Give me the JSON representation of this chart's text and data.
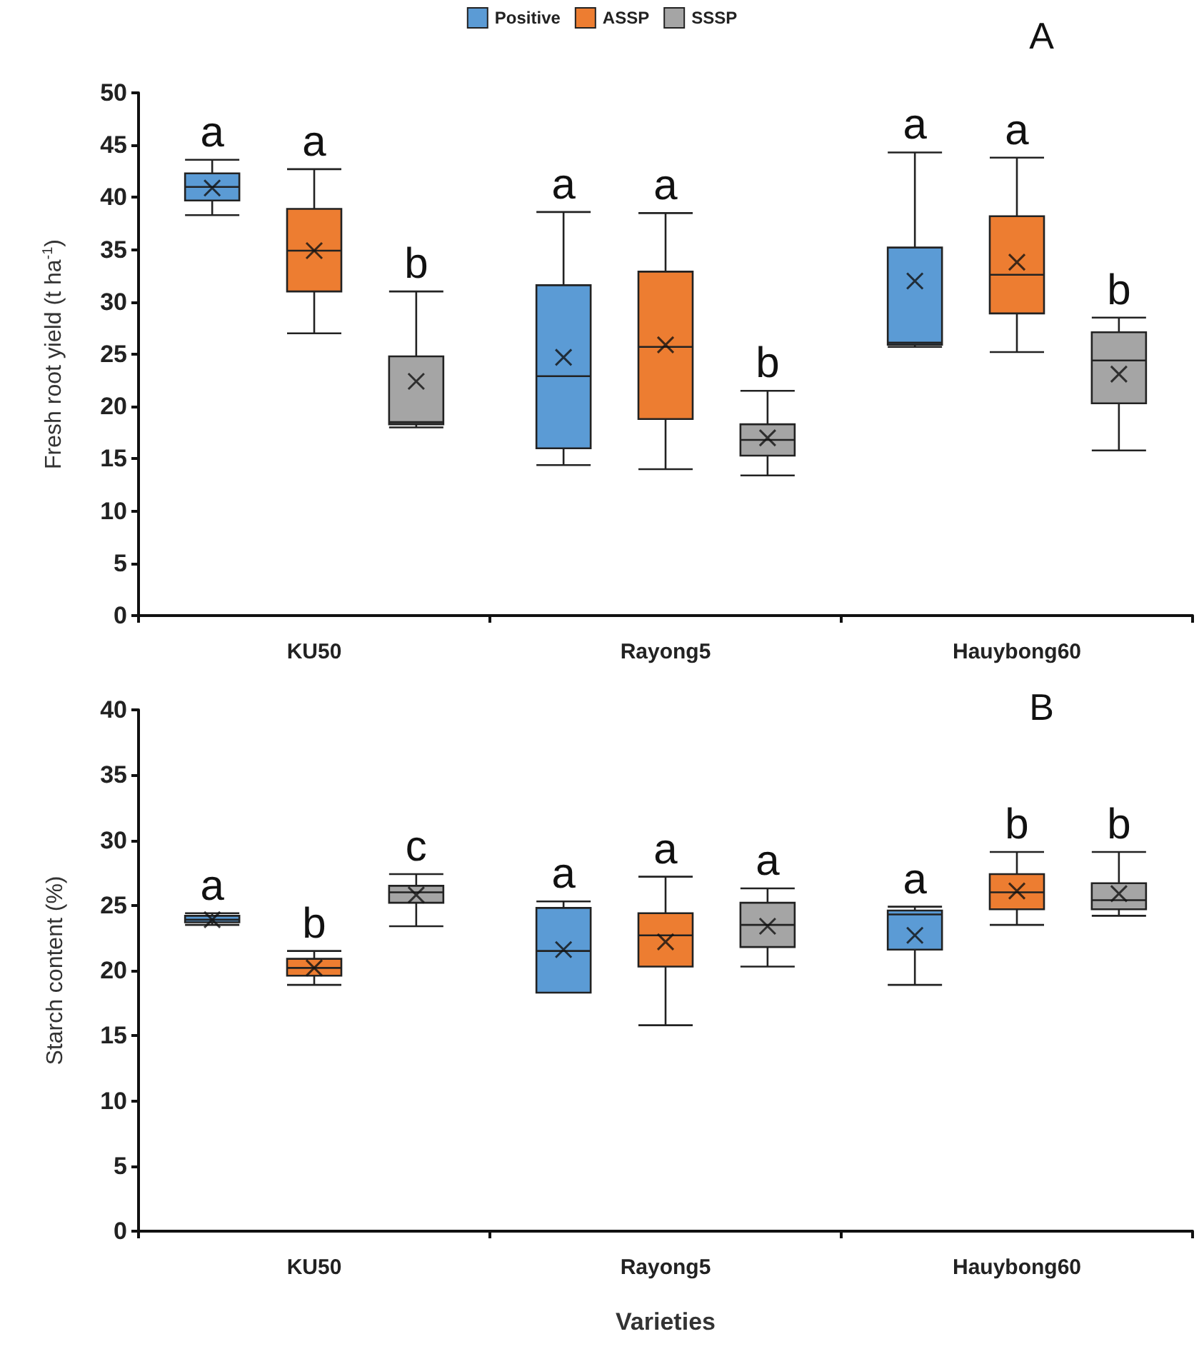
{
  "chart_data": [
    {
      "type": "box",
      "ylabel": "Fresh root yield (t ha$^{-1}$)",
      "categories": [
        "KU50",
        "Rayong5",
        "Hauybong60"
      ],
      "ylim": [
        0,
        50
      ],
      "yticks": [
        0,
        5,
        10,
        15,
        20,
        25,
        30,
        35,
        40,
        45,
        50
      ],
      "grid": false,
      "legend": "top",
      "series": [
        {
          "name": "Positive",
          "color": "#5b9bd5",
          "boxes": [
            {
              "low": 38.3,
              "q1": 39.7,
              "median": 41,
              "q3": 42.3,
              "high": 43.6,
              "mean": 40.9
            },
            {
              "low": 14.4,
              "q1": 16,
              "median": 22.9,
              "q3": 31.6,
              "high": 38.6,
              "mean": 24.7
            },
            {
              "low": 25.7,
              "q1": 25.9,
              "median": 26.1,
              "q3": 35.2,
              "high": 44.3,
              "mean": 32
            }
          ]
        },
        {
          "name": "ASSP",
          "color": "#ed7d31",
          "boxes": [
            {
              "low": 27,
              "q1": 31,
              "median": 34.9,
              "q3": 38.9,
              "high": 42.7,
              "mean": 34.9
            },
            {
              "low": 14,
              "q1": 18.8,
              "median": 25.7,
              "q3": 32.9,
              "high": 38.5,
              "mean": 25.9
            },
            {
              "low": 25.2,
              "q1": 28.9,
              "median": 32.6,
              "q3": 38.2,
              "high": 43.8,
              "mean": 33.8
            }
          ]
        },
        {
          "name": "SSSP",
          "color": "#a5a5a5",
          "boxes": [
            {
              "low": 18,
              "q1": 18.3,
              "median": 18.5,
              "q3": 24.8,
              "high": 31,
              "mean": 22.4
            },
            {
              "low": 13.4,
              "q1": 15.3,
              "median": 16.8,
              "q3": 18.3,
              "high": 21.5,
              "mean": 17
            },
            {
              "low": 15.8,
              "q1": 20.3,
              "median": 24.4,
              "q3": 27.1,
              "high": 28.5,
              "mean": 23.1
            }
          ]
        }
      ],
      "annotations": [
        "A",
        "a",
        "a",
        "b",
        "a",
        "a",
        "b",
        "a",
        "a",
        "b"
      ]
    },
    {
      "type": "box",
      "ylabel": "Starch content (%)",
      "xlabel": "Varieties",
      "categories": [
        "KU50",
        "Rayong5",
        "Hauybong60"
      ],
      "ylim": [
        0,
        40
      ],
      "yticks": [
        0,
        5,
        10,
        15,
        20,
        25,
        30,
        35,
        40
      ],
      "grid": false,
      "series": [
        {
          "color": "#5b9bd5",
          "boxes": [
            {
              "low": 23.5,
              "q1": 23.7,
              "median": 23.9,
              "q3": 24.2,
              "high": 24.4,
              "mean": 23.9
            },
            {
              "low": 18.3,
              "q1": 18.3,
              "median": 21.5,
              "q3": 24.8,
              "high": 25.3,
              "mean": 21.6
            },
            {
              "low": 18.9,
              "q1": 21.6,
              "median": 24.3,
              "q3": 24.6,
              "high": 24.9,
              "mean": 22.7
            }
          ]
        },
        {
          "color": "#ed7d31",
          "boxes": [
            {
              "low": 18.9,
              "q1": 19.6,
              "median": 20.2,
              "q3": 20.9,
              "high": 21.5,
              "mean": 20.2
            },
            {
              "low": 15.8,
              "q1": 20.3,
              "median": 22.7,
              "q3": 24.4,
              "high": 27.2,
              "mean": 22.2
            },
            {
              "low": 23.5,
              "q1": 24.7,
              "median": 26,
              "q3": 27.4,
              "high": 29.1,
              "mean": 26.1
            }
          ]
        },
        {
          "color": "#a5a5a5",
          "boxes": [
            {
              "low": 23.4,
              "q1": 25.2,
              "median": 26,
              "q3": 26.5,
              "high": 27.4,
              "mean": 25.8
            },
            {
              "low": 20.3,
              "q1": 21.8,
              "median": 23.5,
              "q3": 25.2,
              "high": 26.3,
              "mean": 23.4
            },
            {
              "low": 24.2,
              "q1": 24.7,
              "median": 25.4,
              "q3": 26.7,
              "high": 29.1,
              "mean": 25.9
            }
          ]
        }
      ],
      "annotations": [
        "B",
        "a",
        "b",
        "c",
        "a",
        "a",
        "a",
        "a",
        "b",
        "b"
      ]
    }
  ]
}
